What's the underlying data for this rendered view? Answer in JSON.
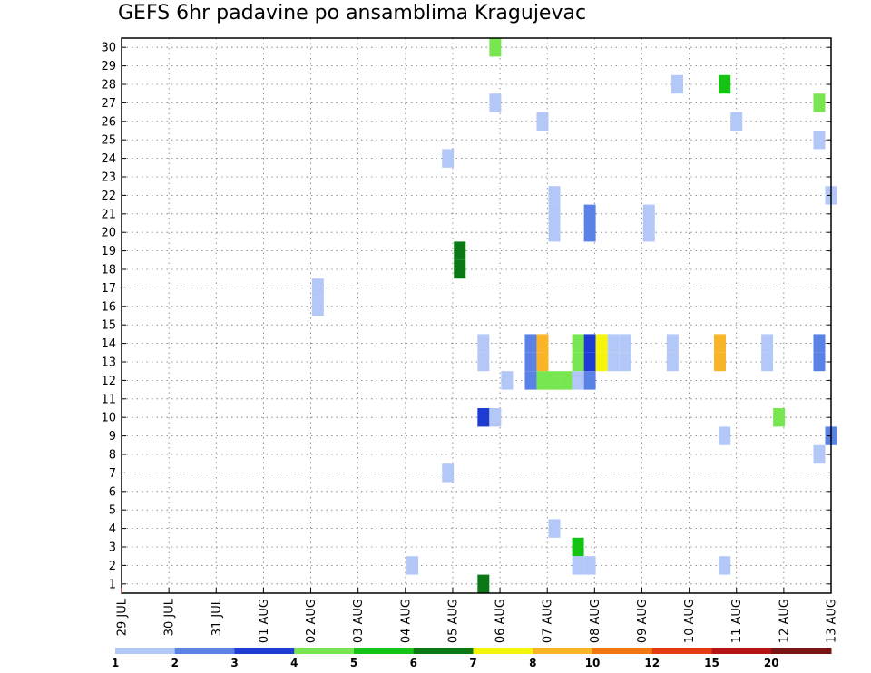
{
  "title": "GEFS 6hr padavine po ansamblima Kragujevac",
  "chart_data": {
    "type": "heatmap",
    "title": "GEFS 6hr padavine po ansamblima Kragujevac",
    "xlabel": "",
    "ylabel": "",
    "x_tick_labels": [
      "29 JUL",
      "30 JUL",
      "31 JUL",
      "01 AUG",
      "02 AUG",
      "03 AUG",
      "04 AUG",
      "05 AUG",
      "06 AUG",
      "07 AUG",
      "08 AUG",
      "09 AUG",
      "10 AUG",
      "11 AUG",
      "12 AUG",
      "13 AUG"
    ],
    "y_tick_labels": [
      "1",
      "2",
      "3",
      "4",
      "5",
      "6",
      "7",
      "8",
      "9",
      "10",
      "11",
      "12",
      "13",
      "14",
      "15",
      "16",
      "17",
      "18",
      "19",
      "20",
      "21",
      "22",
      "23",
      "24",
      "25",
      "26",
      "27",
      "28",
      "29",
      "30"
    ],
    "xlim_days": [
      0,
      15
    ],
    "ylim": [
      0.5,
      30.5
    ],
    "grid": true,
    "colorbar": {
      "levels": [
        "1",
        "2",
        "3",
        "4",
        "5",
        "6",
        "7",
        "8",
        "10",
        "12",
        "15",
        "20"
      ],
      "colors": [
        "#b4c8f8",
        "#5a82e6",
        "#1e3cd2",
        "#78e650",
        "#14c314",
        "#0a7814",
        "#f5f50a",
        "#fab428",
        "#f07814",
        "#e63c14",
        "#b41414",
        "#781414"
      ]
    },
    "cells": [
      {
        "day": 7.9,
        "member": 30,
        "color": "#78e650"
      },
      {
        "day": 11.75,
        "member": 28,
        "color": "#b4c8f8"
      },
      {
        "day": 12.75,
        "member": 28,
        "color": "#14c314"
      },
      {
        "day": 7.9,
        "member": 27,
        "color": "#b4c8f8"
      },
      {
        "day": 14.75,
        "member": 27,
        "color": "#78e650"
      },
      {
        "day": 8.9,
        "member": 26,
        "color": "#b4c8f8"
      },
      {
        "day": 13.0,
        "member": 26,
        "color": "#b4c8f8"
      },
      {
        "day": 14.75,
        "member": 25,
        "color": "#b4c8f8"
      },
      {
        "day": 6.9,
        "member": 24,
        "color": "#b4c8f8"
      },
      {
        "day": 9.15,
        "member": 22,
        "color": "#b4c8f8"
      },
      {
        "day": 15.0,
        "member": 22,
        "color": "#b4c8f8"
      },
      {
        "day": 9.15,
        "member": 21,
        "color": "#b4c8f8"
      },
      {
        "day": 9.9,
        "member": 21,
        "color": "#5a82e6"
      },
      {
        "day": 11.15,
        "member": 21,
        "color": "#b4c8f8"
      },
      {
        "day": 9.15,
        "member": 20,
        "color": "#b4c8f8"
      },
      {
        "day": 9.9,
        "member": 20,
        "color": "#5a82e6"
      },
      {
        "day": 11.15,
        "member": 20,
        "color": "#b4c8f8"
      },
      {
        "day": 7.15,
        "member": 19,
        "color": "#0a7814"
      },
      {
        "day": 7.15,
        "member": 18,
        "color": "#0a7814"
      },
      {
        "day": 4.15,
        "member": 17,
        "color": "#b4c8f8"
      },
      {
        "day": 4.15,
        "member": 16,
        "color": "#b4c8f8"
      },
      {
        "day": 7.65,
        "member": 14,
        "color": "#b4c8f8"
      },
      {
        "day": 8.65,
        "member": 14,
        "color": "#5a82e6"
      },
      {
        "day": 8.9,
        "member": 14,
        "color": "#fab428"
      },
      {
        "day": 9.65,
        "member": 14,
        "color": "#78e650"
      },
      {
        "day": 9.9,
        "member": 14,
        "color": "#1e3cd2"
      },
      {
        "day": 10.15,
        "member": 14,
        "color": "#f5f50a"
      },
      {
        "day": 10.4,
        "member": 14,
        "color": "#b4c8f8"
      },
      {
        "day": 10.65,
        "member": 14,
        "color": "#b4c8f8"
      },
      {
        "day": 11.65,
        "member": 14,
        "color": "#b4c8f8"
      },
      {
        "day": 12.65,
        "member": 14,
        "color": "#fab428"
      },
      {
        "day": 13.65,
        "member": 14,
        "color": "#b4c8f8"
      },
      {
        "day": 14.75,
        "member": 14,
        "color": "#5a82e6"
      },
      {
        "day": 7.65,
        "member": 13,
        "color": "#b4c8f8"
      },
      {
        "day": 8.65,
        "member": 13,
        "color": "#5a82e6"
      },
      {
        "day": 8.9,
        "member": 13,
        "color": "#fab428"
      },
      {
        "day": 9.65,
        "member": 13,
        "color": "#78e650"
      },
      {
        "day": 9.9,
        "member": 13,
        "color": "#1e3cd2"
      },
      {
        "day": 10.15,
        "member": 13,
        "color": "#f5f50a"
      },
      {
        "day": 10.4,
        "member": 13,
        "color": "#b4c8f8"
      },
      {
        "day": 10.65,
        "member": 13,
        "color": "#b4c8f8"
      },
      {
        "day": 11.65,
        "member": 13,
        "color": "#b4c8f8"
      },
      {
        "day": 12.65,
        "member": 13,
        "color": "#fab428"
      },
      {
        "day": 13.65,
        "member": 13,
        "color": "#b4c8f8"
      },
      {
        "day": 14.75,
        "member": 13,
        "color": "#5a82e6"
      },
      {
        "day": 8.15,
        "member": 12,
        "color": "#b4c8f8"
      },
      {
        "day": 8.65,
        "member": 12,
        "color": "#5a82e6"
      },
      {
        "day": 8.9,
        "member": 12,
        "color": "#78e650"
      },
      {
        "day": 9.15,
        "member": 12,
        "color": "#78e650"
      },
      {
        "day": 9.4,
        "member": 12,
        "color": "#78e650"
      },
      {
        "day": 9.65,
        "member": 12,
        "color": "#b4c8f8"
      },
      {
        "day": 9.9,
        "member": 12,
        "color": "#5a82e6"
      },
      {
        "day": 7.65,
        "member": 10,
        "color": "#1e3cd2"
      },
      {
        "day": 7.9,
        "member": 10,
        "color": "#b4c8f8"
      },
      {
        "day": 13.9,
        "member": 10,
        "color": "#78e650"
      },
      {
        "day": 12.75,
        "member": 9,
        "color": "#b4c8f8"
      },
      {
        "day": 15.0,
        "member": 9,
        "color": "#5a82e6"
      },
      {
        "day": 14.75,
        "member": 8,
        "color": "#b4c8f8"
      },
      {
        "day": 6.9,
        "member": 7,
        "color": "#b4c8f8"
      },
      {
        "day": 9.15,
        "member": 4,
        "color": "#b4c8f8"
      },
      {
        "day": 9.65,
        "member": 3,
        "color": "#14c314"
      },
      {
        "day": 6.15,
        "member": 2,
        "color": "#b4c8f8"
      },
      {
        "day": 9.65,
        "member": 2,
        "color": "#b4c8f8"
      },
      {
        "day": 9.9,
        "member": 2,
        "color": "#b4c8f8"
      },
      {
        "day": 12.75,
        "member": 2,
        "color": "#b4c8f8"
      },
      {
        "day": 7.65,
        "member": 1,
        "color": "#0a7814"
      }
    ]
  }
}
